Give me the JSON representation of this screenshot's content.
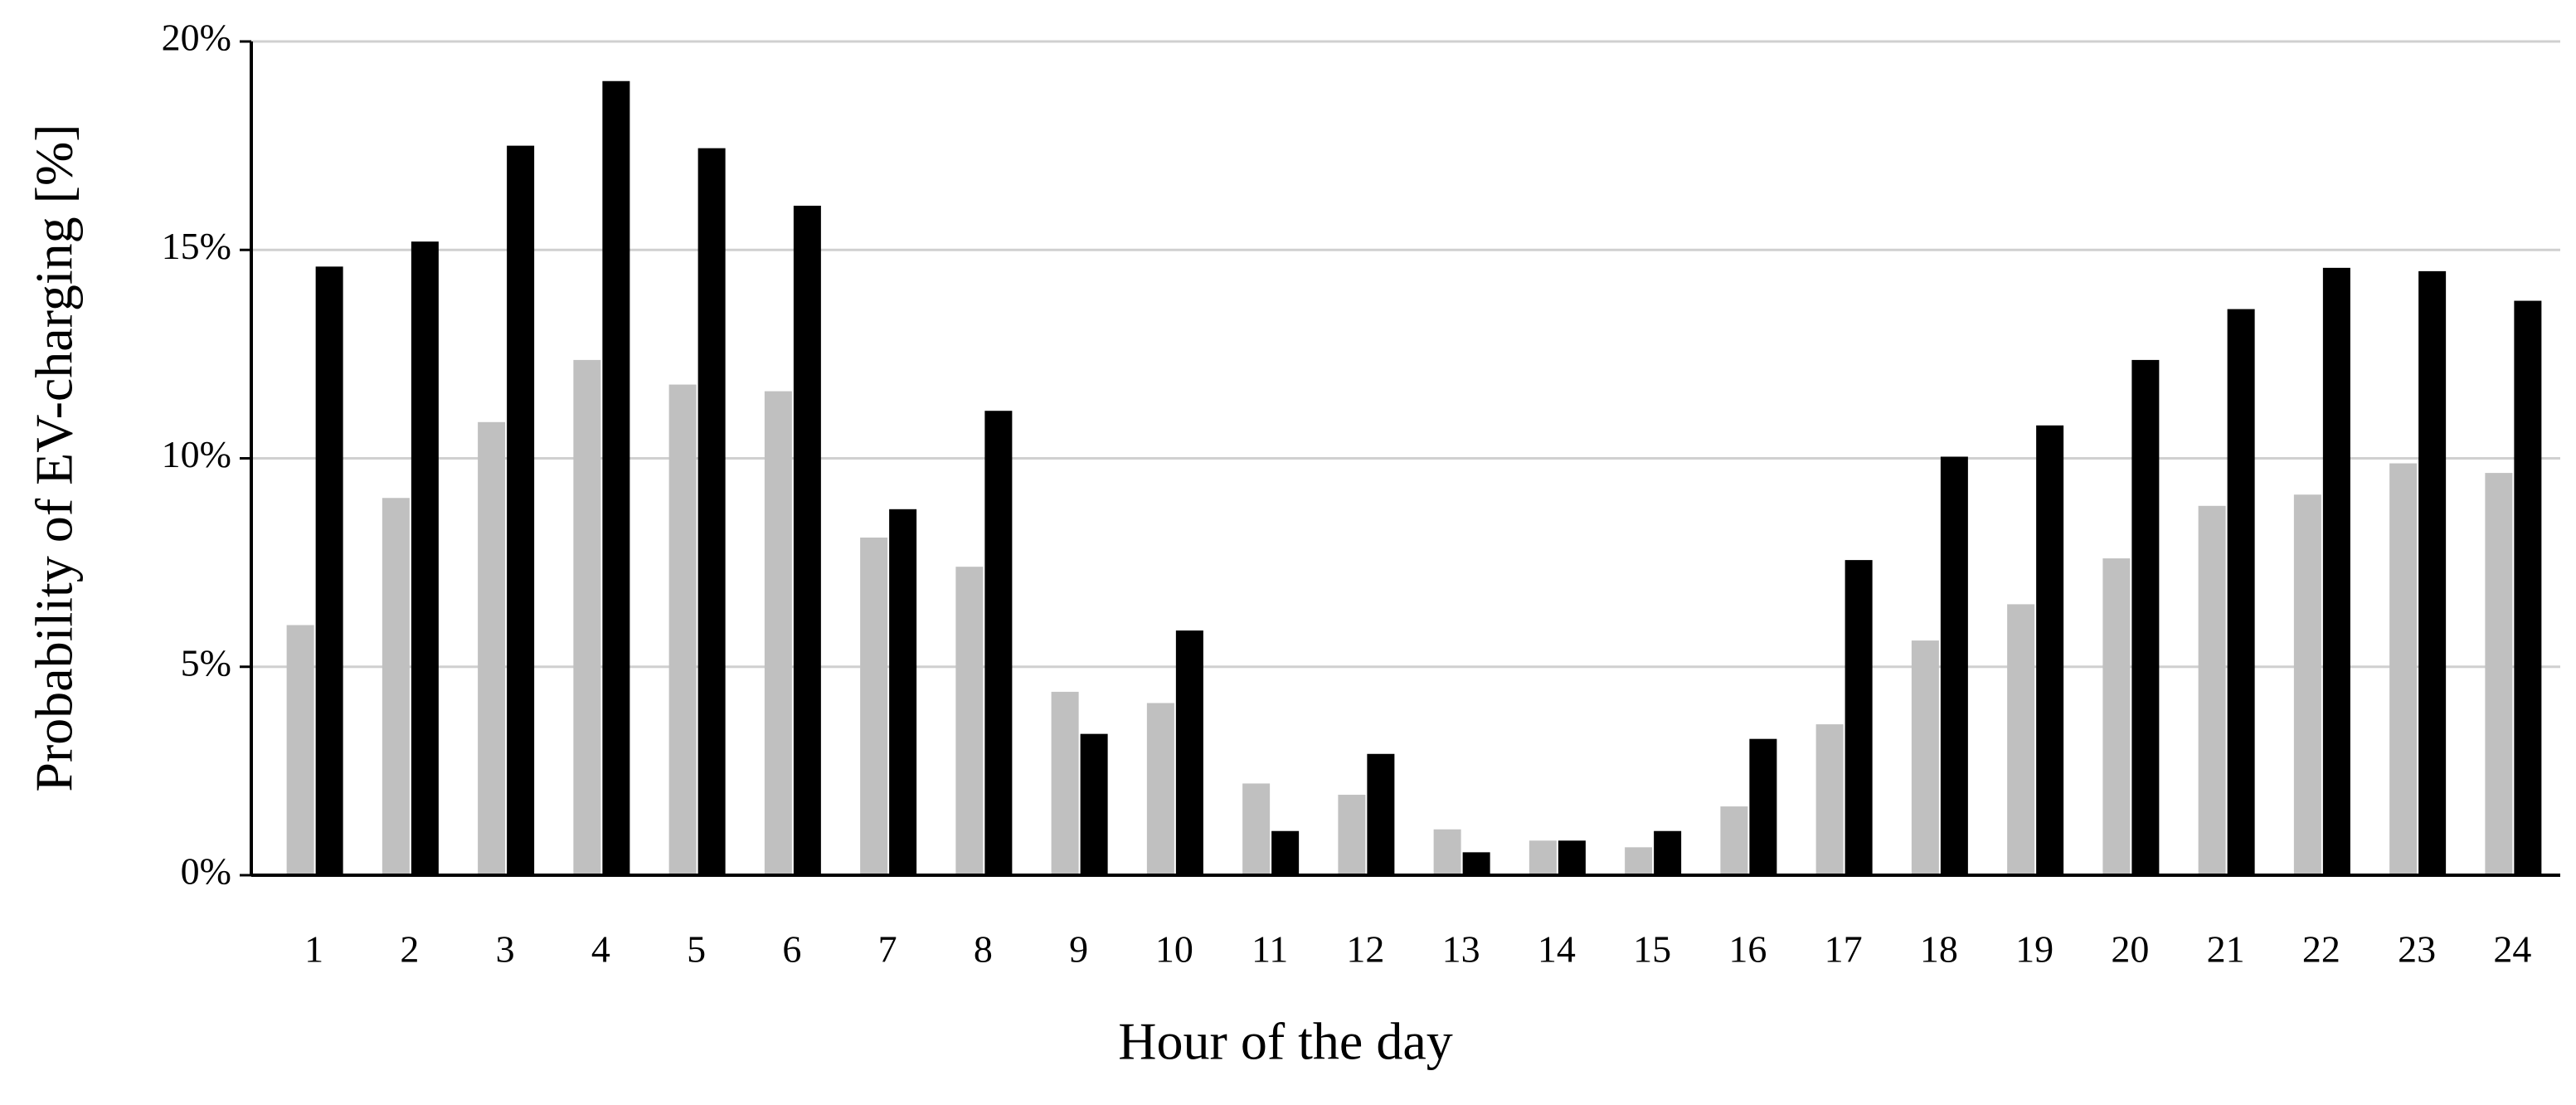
{
  "chart_data": {
    "type": "bar",
    "y_label": "Probability of EV-charging  [%]",
    "x_label": "Hour of the day",
    "categories": [
      "1",
      "2",
      "3",
      "4",
      "5",
      "6",
      "7",
      "8",
      "9",
      "10",
      "11",
      "12",
      "13",
      "14",
      "15",
      "16",
      "17",
      "18",
      "19",
      "20",
      "21",
      "22",
      "23",
      "24"
    ],
    "series": [
      {
        "color": "#c0c0c0",
        "values": [
          6.0,
          9.05,
          10.87,
          12.36,
          11.77,
          11.61,
          8.1,
          7.4,
          4.4,
          4.13,
          2.2,
          1.93,
          1.1,
          0.83,
          0.67,
          1.65,
          3.62,
          5.63,
          6.5,
          7.6,
          8.86,
          9.13,
          9.88,
          9.65
        ]
      },
      {
        "color": "#000000",
        "values": [
          14.6,
          15.2,
          17.5,
          19.05,
          17.44,
          16.06,
          8.78,
          11.14,
          3.39,
          5.87,
          1.06,
          2.91,
          0.55,
          0.83,
          1.06,
          3.27,
          7.56,
          10.04,
          10.79,
          12.36,
          13.58,
          14.57,
          14.49,
          13.78
        ]
      }
    ],
    "ylim": [
      0,
      20
    ],
    "yticks": [
      {
        "value": 0,
        "label": "0%"
      },
      {
        "value": 5,
        "label": "5%"
      },
      {
        "value": 10,
        "label": "10%"
      },
      {
        "value": 15,
        "label": "15%"
      },
      {
        "value": 20,
        "label": "20%"
      }
    ],
    "grid": true
  }
}
